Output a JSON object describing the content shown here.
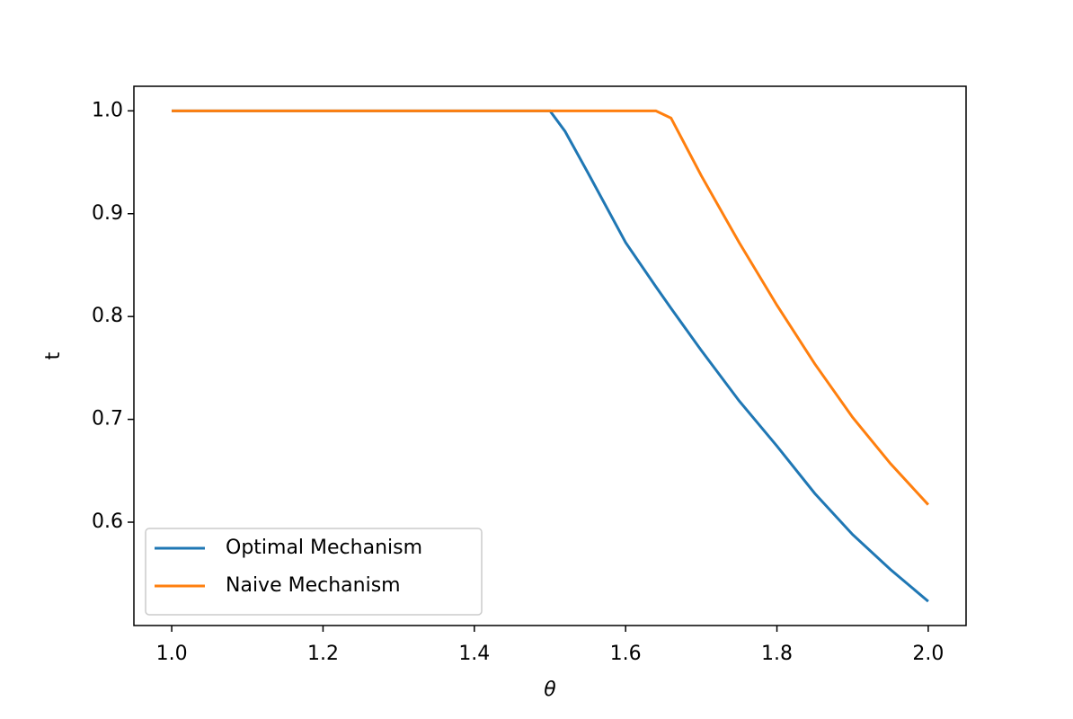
{
  "chart_data": {
    "type": "line",
    "x_label": "θ",
    "y_label": "t",
    "x": [
      1.0,
      1.5,
      1.52,
      1.55,
      1.6,
      1.64,
      1.66,
      1.7,
      1.75,
      1.8,
      1.85,
      1.9,
      1.95,
      2.0
    ],
    "series": [
      {
        "name": "Optimal Mechanism",
        "color": "#1f77b4",
        "values": [
          1.0,
          1.0,
          0.98,
          0.94,
          0.872,
          0.829,
          0.808,
          0.767,
          0.718,
          0.674,
          0.628,
          0.588,
          0.554,
          0.523
        ]
      },
      {
        "name": "Naive Mechanism",
        "color": "#ff7f0e",
        "values": [
          1.0,
          1.0,
          1.0,
          1.0,
          1.0,
          1.0,
          0.993,
          0.937,
          0.872,
          0.811,
          0.754,
          0.702,
          0.657,
          0.617
        ]
      }
    ],
    "xlim": [
      0.95,
      2.05
    ],
    "xticks": [
      {
        "value": 1.0,
        "label": "1.0"
      },
      1.2,
      1.4,
      1.6,
      1.8,
      {
        "value": 2.0,
        "label": "2.0"
      }
    ],
    "ylim": [
      0.4995,
      1.0239
    ],
    "yticks": [
      0.6,
      0.7,
      0.8,
      0.9,
      {
        "value": 1.0,
        "label": "1.0"
      }
    ],
    "legend": "lower left",
    "grid": false
  }
}
